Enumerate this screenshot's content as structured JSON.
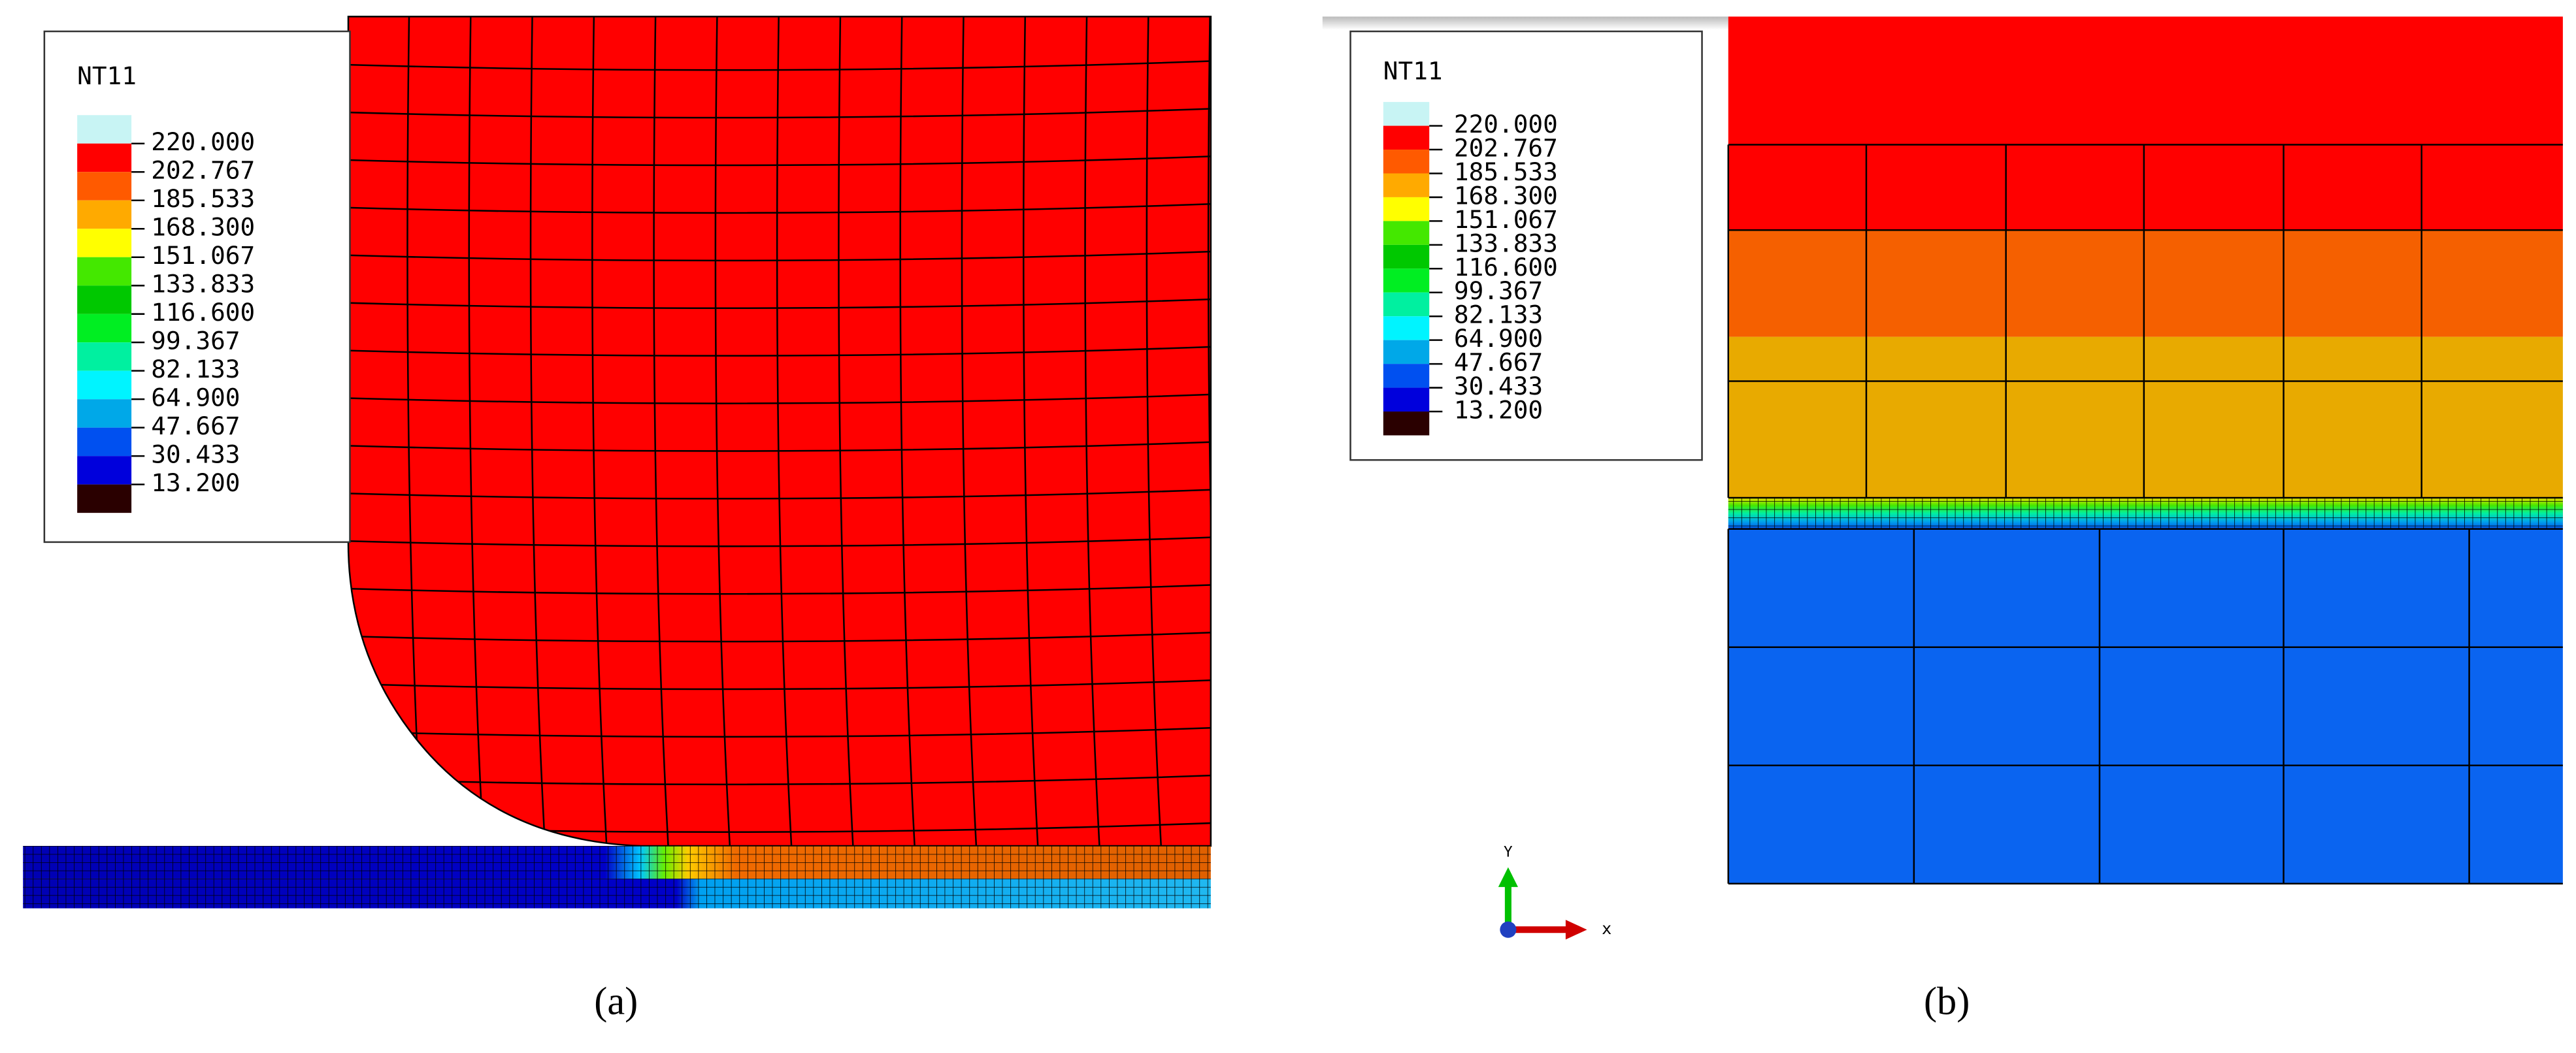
{
  "panels": [
    {
      "caption": "(a)",
      "legend": {
        "title": "NT11",
        "labels": [
          "220.000",
          "202.767",
          "185.533",
          "168.300",
          "151.067",
          "133.833",
          "116.600",
          "99.367",
          "82.133",
          "64.900",
          "47.667",
          "30.433",
          "13.200"
        ],
        "colors": [
          "#c8f4f4",
          "#ff0000",
          "#ff5a00",
          "#ffaa00",
          "#ffff00",
          "#44e800",
          "#00c800",
          "#00ee22",
          "#00f0a0",
          "#00f4ff",
          "#00a8e8",
          "#0050f0",
          "#0000dc",
          "#2a0000"
        ]
      }
    },
    {
      "caption": "(b)",
      "legend": {
        "title": "NT11",
        "labels": [
          "220.000",
          "202.767",
          "185.533",
          "168.300",
          "151.067",
          "133.833",
          "116.600",
          "99.367",
          "82.133",
          "64.900",
          "47.667",
          "30.433",
          "13.200"
        ],
        "colors": [
          "#c8f4f4",
          "#ff0000",
          "#ff5a00",
          "#ffaa00",
          "#ffff00",
          "#44e800",
          "#00c800",
          "#00ee22",
          "#00f0a0",
          "#00f4ff",
          "#00a8e8",
          "#0050f0",
          "#0000dc",
          "#2a0000"
        ]
      },
      "triad": {
        "y": "Y",
        "x": "x"
      }
    }
  ]
}
